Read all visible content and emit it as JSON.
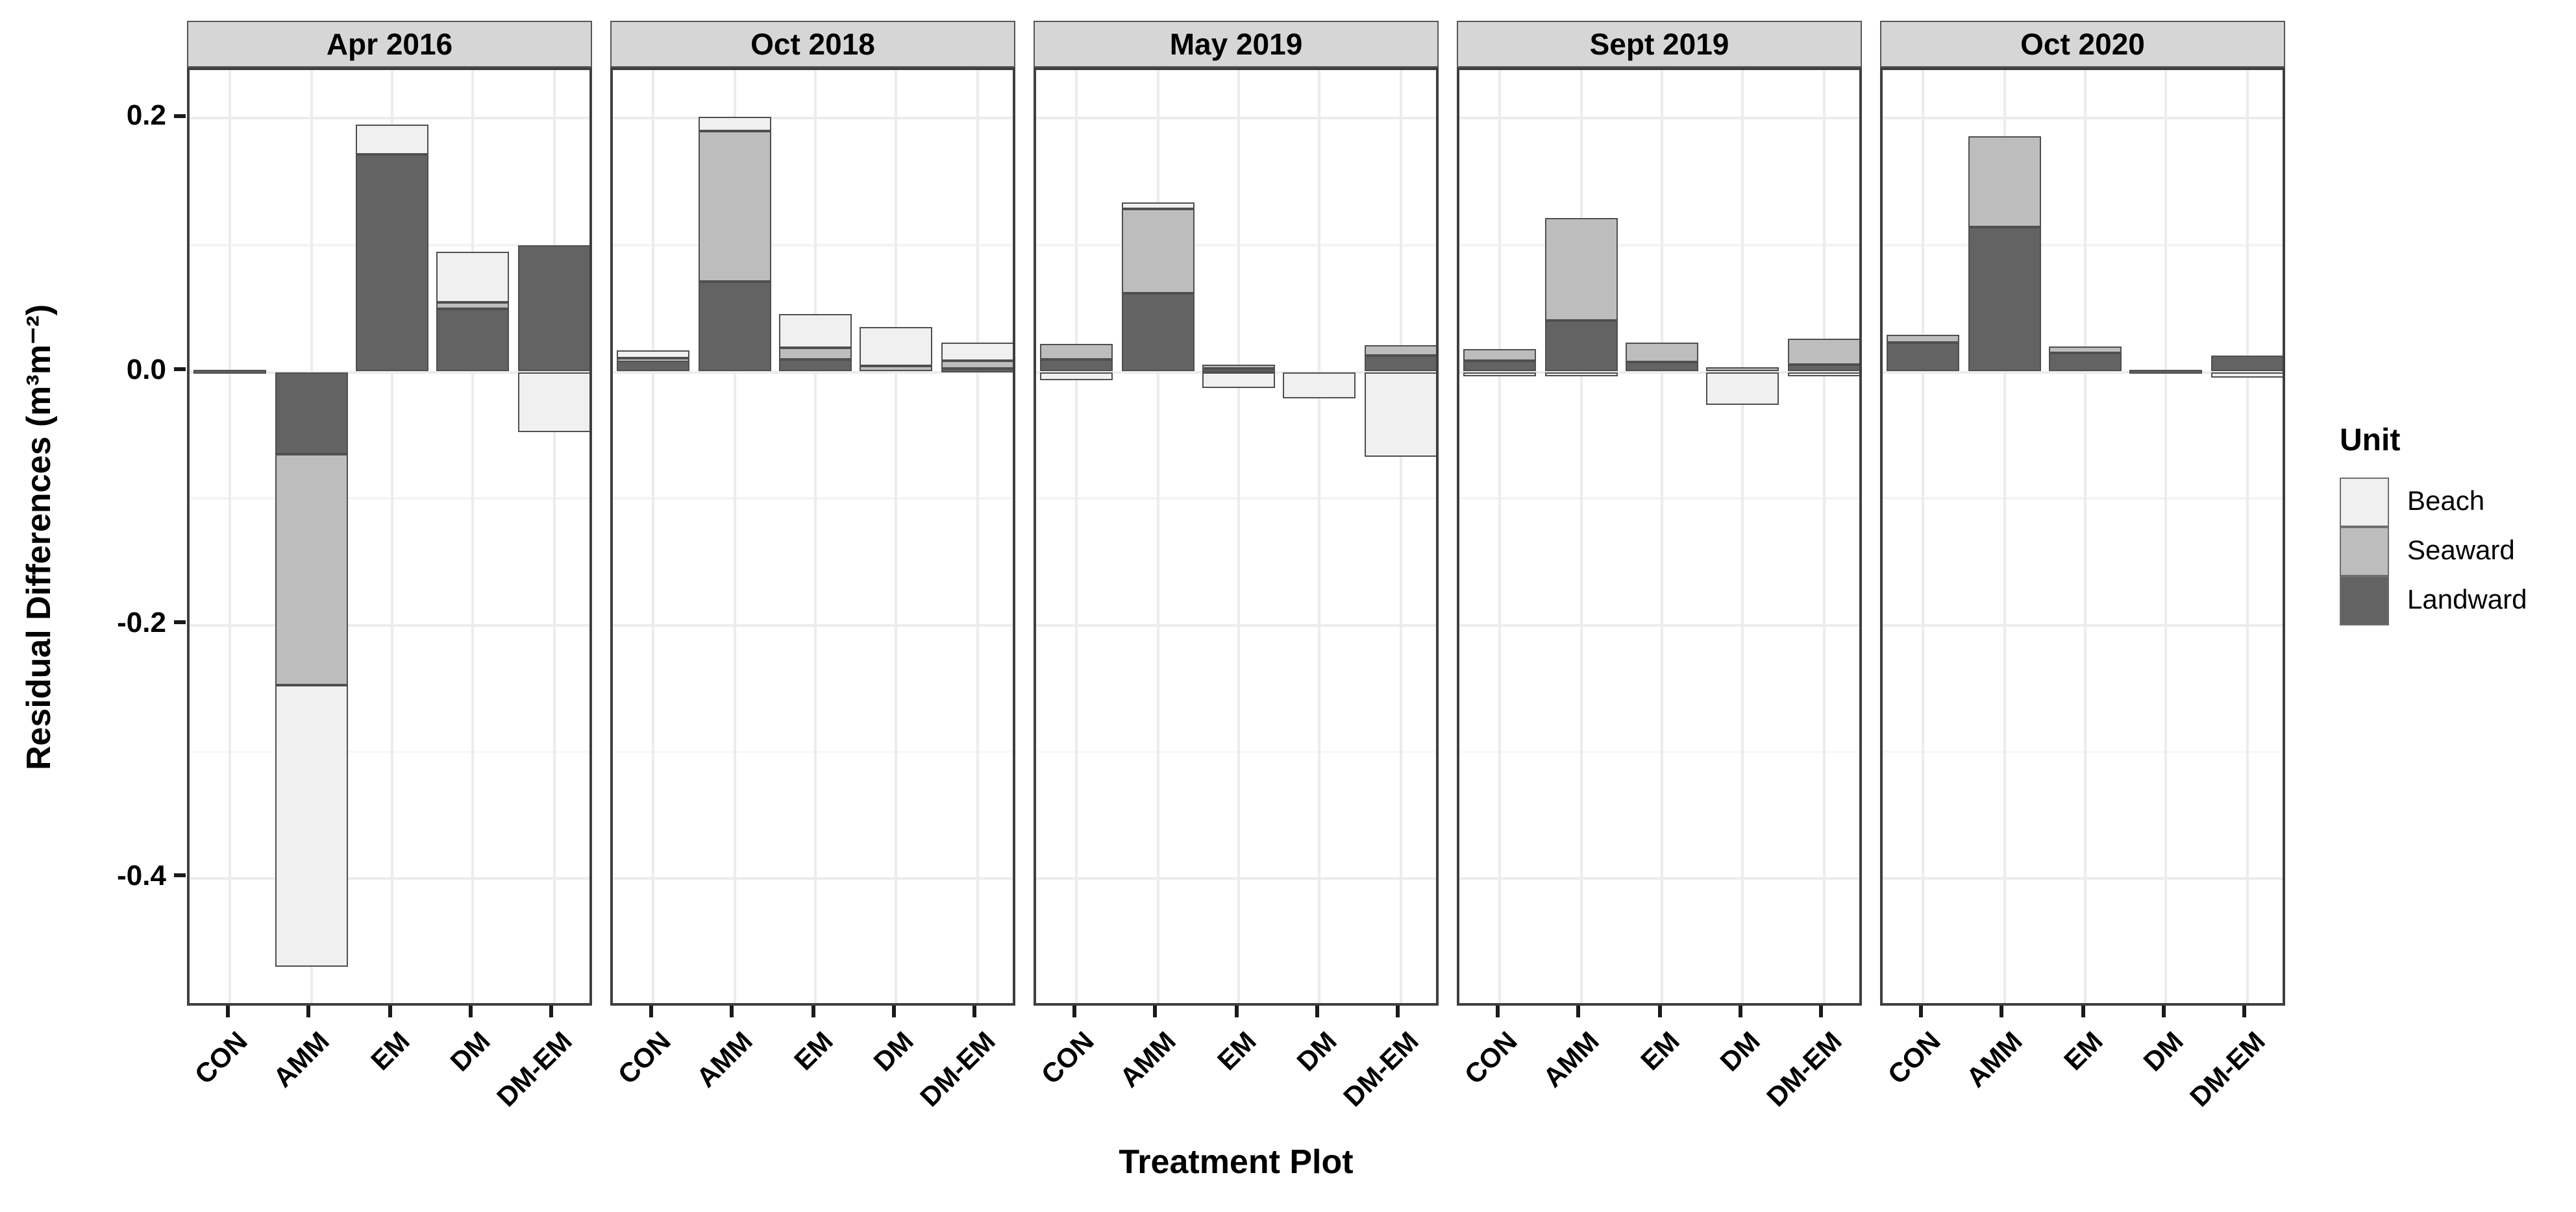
{
  "chart_data": {
    "type": "bar",
    "subtype": "stacked-faceted",
    "xlabel": "Treatment Plot",
    "ylabel": "Residual Differences  (m³m⁻²)",
    "legend_title": "Unit",
    "legend_position": "right",
    "grid": true,
    "facets": [
      "Apr 2016",
      "Oct 2018",
      "May 2019",
      "Sept 2019",
      "Oct 2020"
    ],
    "categories": [
      "CON",
      "AMM",
      "EM",
      "DM",
      "DM-EM"
    ],
    "units": [
      {
        "name": "Beach",
        "color": "#f0f0f0"
      },
      {
        "name": "Seaward",
        "color": "#bdbdbd"
      },
      {
        "name": "Landward",
        "color": "#636363"
      }
    ],
    "stack_order_from_zero": [
      "Landward",
      "Seaward",
      "Beach"
    ],
    "ylim": [
      -0.502,
      0.238
    ],
    "yticks_major": [
      0.2,
      0.0,
      -0.2,
      -0.4
    ],
    "ytick_labels": [
      "0.2",
      "0.0",
      "-0.2",
      "-0.4"
    ],
    "yticks_minor": [
      0.1,
      -0.1,
      -0.3,
      -0.5
    ],
    "values": {
      "Apr 2016": {
        "CON": {
          "Beach": 0,
          "Seaward": 0,
          "Landward": 0.002
        },
        "AMM": {
          "Beach": -0.223,
          "Seaward": -0.182,
          "Landward": -0.065
        },
        "EM": {
          "Beach": 0.023,
          "Seaward": 0,
          "Landward": 0.172
        },
        "DM": {
          "Beach": 0.04,
          "Seaward": 0.005,
          "Landward": 0.05
        },
        "DM-EM": {
          "Beach": -0.048,
          "Seaward": 0,
          "Landward": 0.1
        }
      },
      "Oct 2018": {
        "CON": {
          "Beach": 0.006,
          "Seaward": 0.002,
          "Landward": 0.009
        },
        "AMM": {
          "Beach": 0.011,
          "Seaward": 0.119,
          "Landward": 0.071
        },
        "EM": {
          "Beach": 0.027,
          "Seaward": 0.009,
          "Landward": 0.01
        },
        "DM": {
          "Beach": 0.03,
          "Seaward": 0.005,
          "Landward": 0
        },
        "DM-EM": {
          "Beach": 0.014,
          "Seaward": 0.006,
          "Landward": 0.003
        }
      },
      "May 2019": {
        "CON": {
          "Beach": -0.007,
          "Seaward": 0.012,
          "Landward": 0.01
        },
        "AMM": {
          "Beach": 0.005,
          "Seaward": 0.067,
          "Landward": 0.062
        },
        "EM": {
          "Beach": -0.013,
          "Seaward": 0.003,
          "Landward": 0.003
        },
        "DM": {
          "Beach": -0.021,
          "Seaward": 0,
          "Landward": 0
        },
        "DM-EM": {
          "Beach": -0.067,
          "Seaward": 0.008,
          "Landward": 0.013
        }
      },
      "Sept 2019": {
        "CON": {
          "Beach": -0.004,
          "Seaward": 0.009,
          "Landward": 0.009
        },
        "AMM": {
          "Beach": -0.003,
          "Seaward": 0.081,
          "Landward": 0.04
        },
        "EM": {
          "Beach": 0,
          "Seaward": 0.015,
          "Landward": 0.008
        },
        "DM": {
          "Beach": -0.026,
          "Seaward": 0.004,
          "Landward": 0
        },
        "DM-EM": {
          "Beach": -0.004,
          "Seaward": 0.02,
          "Landward": 0.006
        }
      },
      "Oct 2020": {
        "CON": {
          "Beach": 0,
          "Seaward": 0.006,
          "Landward": 0.023
        },
        "AMM": {
          "Beach": 0,
          "Seaward": 0.072,
          "Landward": 0.114
        },
        "EM": {
          "Beach": 0,
          "Seaward": 0.005,
          "Landward": 0.015
        },
        "DM": {
          "Beach": 0,
          "Seaward": 0,
          "Landward": 0.002
        },
        "DM-EM": {
          "Beach": -0.005,
          "Seaward": 0,
          "Landward": 0.013
        }
      }
    }
  }
}
